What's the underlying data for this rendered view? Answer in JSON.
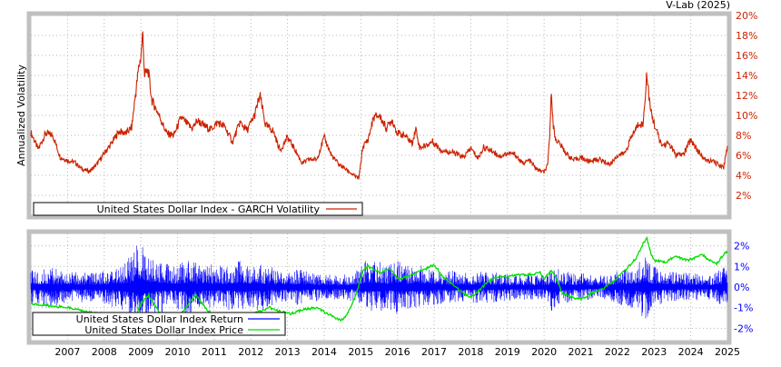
{
  "credit": "V-Lab (2025)",
  "colors": {
    "frame": "#c0c0c0",
    "grid": "#b4b4b4",
    "volatility": "#cc2200",
    "returns": "#0000ff",
    "price": "#00dd00",
    "axis_text": "#cc2200",
    "return_axis_text": "#0000ff",
    "text": "#000000"
  },
  "chart_data": [
    {
      "type": "line",
      "ylabel": "Annualized Volatility",
      "ylim": [
        0,
        20
      ],
      "y_ticks": [
        2,
        4,
        6,
        8,
        10,
        12,
        14,
        16,
        18,
        20
      ],
      "y_tick_labels": [
        "2%",
        "4%",
        "6%",
        "8%",
        "10%",
        "12%",
        "14%",
        "16%",
        "18%",
        "20%"
      ],
      "grid": true,
      "legend_position": "bottom-left",
      "series": [
        {
          "name": "United States Dollar Index - GARCH Volatility",
          "x": [
            2006.0,
            2006.2,
            2006.4,
            2006.6,
            2006.8,
            2007.0,
            2007.2,
            2007.4,
            2007.6,
            2007.8,
            2008.0,
            2008.2,
            2008.4,
            2008.6,
            2008.75,
            2008.85,
            2008.95,
            2009.0,
            2009.05,
            2009.1,
            2009.2,
            2009.3,
            2009.5,
            2009.7,
            2009.9,
            2010.1,
            2010.3,
            2010.4,
            2010.55,
            2010.7,
            2010.9,
            2011.1,
            2011.3,
            2011.5,
            2011.7,
            2011.9,
            2012.1,
            2012.25,
            2012.4,
            2012.6,
            2012.8,
            2013.0,
            2013.2,
            2013.4,
            2013.6,
            2013.8,
            2014.0,
            2014.2,
            2014.4,
            2014.6,
            2014.7,
            2014.8,
            2014.95,
            2015.05,
            2015.2,
            2015.35,
            2015.5,
            2015.7,
            2015.85,
            2016.0,
            2016.2,
            2016.4,
            2016.5,
            2016.6,
            2016.8,
            2016.95,
            2017.2,
            2017.5,
            2017.8,
            2018.0,
            2018.2,
            2018.35,
            2018.6,
            2018.8,
            2019.0,
            2019.2,
            2019.4,
            2019.6,
            2019.8,
            2020.0,
            2020.1,
            2020.15,
            2020.2,
            2020.25,
            2020.3,
            2020.4,
            2020.6,
            2020.8,
            2021.0,
            2021.2,
            2021.5,
            2021.8,
            2022.0,
            2022.2,
            2022.4,
            2022.6,
            2022.7,
            2022.8,
            2022.9,
            2023.0,
            2023.2,
            2023.4,
            2023.6,
            2023.8,
            2024.0,
            2024.2,
            2024.4,
            2024.6,
            2024.8,
            2024.9,
            2025.0
          ],
          "y": [
            8.3,
            6.6,
            8.2,
            8.0,
            5.8,
            5.5,
            5.3,
            4.6,
            4.4,
            5.1,
            6.2,
            7.2,
            8.4,
            8.2,
            8.8,
            12.0,
            15.0,
            15.8,
            18.3,
            14.0,
            14.5,
            11.5,
            10.0,
            8.2,
            8.0,
            9.8,
            9.0,
            8.7,
            9.5,
            9.0,
            8.6,
            9.3,
            8.8,
            7.3,
            9.3,
            8.5,
            10.0,
            12.0,
            9.0,
            8.5,
            6.5,
            7.8,
            6.6,
            5.2,
            5.6,
            5.6,
            7.8,
            6.0,
            5.1,
            4.6,
            4.3,
            4.0,
            3.7,
            6.8,
            7.6,
            9.8,
            10.0,
            8.7,
            9.6,
            8.2,
            8.0,
            7.2,
            8.7,
            6.8,
            7.0,
            7.4,
            6.5,
            6.3,
            5.8,
            6.7,
            5.7,
            6.8,
            6.4,
            5.9,
            6.2,
            6.1,
            5.2,
            5.5,
            4.6,
            4.3,
            5.0,
            8.0,
            12.5,
            9.0,
            7.7,
            7.3,
            6.2,
            5.5,
            5.8,
            5.4,
            5.6,
            5.1,
            6.0,
            6.2,
            8.0,
            9.3,
            9.0,
            14.2,
            10.5,
            9.2,
            7.0,
            7.2,
            6.0,
            6.1,
            7.6,
            6.4,
            5.5,
            5.4,
            5.0,
            4.8,
            7.0
          ]
        }
      ]
    },
    {
      "type": "line",
      "ylim": [
        -2.6,
        2.6
      ],
      "y_ticks": [
        -2,
        -1,
        0,
        1,
        2
      ],
      "y_tick_labels": [
        "-2%",
        "-1%",
        "0%",
        "1%",
        "2%"
      ],
      "grid": true,
      "legend_position": "bottom-left",
      "x_ticks": [
        2007,
        2008,
        2009,
        2010,
        2011,
        2012,
        2013,
        2014,
        2015,
        2016,
        2017,
        2018,
        2019,
        2020,
        2021,
        2022,
        2023,
        2024,
        2025
      ],
      "x_tick_labels": [
        "2007",
        "2008",
        "2009",
        "2010",
        "2011",
        "2012",
        "2013",
        "2014",
        "2015",
        "2016",
        "2017",
        "2018",
        "2019",
        "2020",
        "2021",
        "2022",
        "2023",
        "2024",
        "2025"
      ],
      "series": [
        {
          "name": "United States Dollar Index Return",
          "x": [
            2006.0,
            2006.25,
            2006.5,
            2006.75,
            2007.0,
            2007.25,
            2007.5,
            2007.75,
            2008.0,
            2008.25,
            2008.5,
            2008.75,
            2008.9,
            2009.0,
            2009.1,
            2009.2,
            2009.35,
            2009.5,
            2009.75,
            2010.0,
            2010.25,
            2010.5,
            2010.75,
            2011.0,
            2011.25,
            2011.5,
            2011.75,
            2012.0,
            2012.25,
            2012.5,
            2012.75,
            2013.0,
            2013.25,
            2013.5,
            2013.75,
            2014.0,
            2014.25,
            2014.5,
            2014.75,
            2015.0,
            2015.1,
            2015.25,
            2015.5,
            2015.75,
            2016.0,
            2016.25,
            2016.5,
            2016.75,
            2017.0,
            2017.25,
            2017.5,
            2017.75,
            2018.0,
            2018.25,
            2018.5,
            2018.75,
            2019.0,
            2019.25,
            2019.5,
            2019.75,
            2020.0,
            2020.15,
            2020.2,
            2020.3,
            2020.5,
            2020.75,
            2021.0,
            2021.25,
            2021.5,
            2021.75,
            2022.0,
            2022.25,
            2022.5,
            2022.75,
            2022.8,
            2022.9,
            2023.0,
            2023.25,
            2023.5,
            2023.75,
            2024.0,
            2024.25,
            2024.5,
            2024.75,
            2025.0
          ],
          "hi": [
            0.8,
            0.9,
            1.0,
            0.9,
            0.7,
            0.8,
            0.7,
            0.7,
            0.8,
            1.0,
            1.1,
            1.6,
            2.1,
            2.4,
            2.0,
            1.7,
            1.4,
            1.3,
            1.2,
            1.1,
            1.3,
            1.2,
            1.1,
            1.1,
            1.0,
            1.2,
            1.3,
            1.1,
            1.2,
            1.0,
            0.9,
            0.8,
            0.9,
            0.8,
            0.7,
            0.6,
            0.6,
            0.6,
            0.7,
            1.0,
            1.3,
            1.2,
            1.3,
            1.0,
            1.4,
            1.1,
            1.2,
            1.0,
            0.9,
            0.8,
            0.8,
            0.7,
            0.8,
            0.8,
            0.8,
            0.7,
            0.7,
            0.6,
            0.6,
            0.6,
            0.6,
            0.8,
            1.5,
            1.0,
            0.8,
            0.7,
            0.7,
            0.6,
            0.6,
            0.6,
            0.8,
            1.0,
            1.1,
            1.6,
            1.5,
            1.2,
            1.0,
            0.8,
            0.8,
            0.7,
            0.7,
            0.6,
            0.6,
            0.8,
            1.2
          ],
          "lo": [
            -0.8,
            -0.9,
            -1.0,
            -0.9,
            -0.7,
            -0.8,
            -0.7,
            -0.7,
            -0.8,
            -1.0,
            -1.1,
            -1.6,
            -2.1,
            -2.4,
            -2.0,
            -1.7,
            -1.4,
            -1.3,
            -1.2,
            -1.1,
            -1.3,
            -1.2,
            -1.1,
            -1.1,
            -1.0,
            -1.2,
            -1.3,
            -1.1,
            -1.2,
            -1.0,
            -0.9,
            -0.8,
            -0.9,
            -0.8,
            -0.7,
            -0.6,
            -0.6,
            -0.6,
            -0.7,
            -1.0,
            -1.3,
            -1.2,
            -1.3,
            -1.0,
            -1.4,
            -1.1,
            -1.2,
            -1.0,
            -0.9,
            -0.8,
            -0.8,
            -0.7,
            -0.8,
            -0.8,
            -0.8,
            -0.7,
            -0.7,
            -0.6,
            -0.6,
            -0.6,
            -0.6,
            -0.8,
            -1.5,
            -1.0,
            -0.8,
            -0.7,
            -0.7,
            -0.6,
            -0.6,
            -0.6,
            -0.8,
            -1.0,
            -1.1,
            -1.6,
            -1.5,
            -1.2,
            -1.0,
            -0.8,
            -0.8,
            -0.7,
            -0.7,
            -0.6,
            -0.6,
            -0.8,
            -1.2
          ]
        },
        {
          "name": "United States Dollar Index Price",
          "x": [
            2006.0,
            2006.5,
            2007.0,
            2007.5,
            2008.0,
            2008.3,
            2008.6,
            2008.8,
            2009.0,
            2009.2,
            2009.5,
            2009.8,
            2010.0,
            2010.3,
            2010.5,
            2010.8,
            2011.0,
            2011.3,
            2011.6,
            2011.9,
            2012.2,
            2012.5,
            2012.8,
            2013.1,
            2013.4,
            2013.8,
            2014.0,
            2014.3,
            2014.5,
            2014.7,
            2014.9,
            2015.0,
            2015.1,
            2015.2,
            2015.5,
            2015.8,
            2016.0,
            2016.3,
            2016.5,
            2016.8,
            2017.0,
            2017.2,
            2017.5,
            2017.8,
            2018.0,
            2018.2,
            2018.5,
            2018.8,
            2019.0,
            2019.3,
            2019.6,
            2019.9,
            2020.0,
            2020.2,
            2020.3,
            2020.5,
            2020.8,
            2021.0,
            2021.3,
            2021.6,
            2021.9,
            2022.2,
            2022.5,
            2022.7,
            2022.8,
            2022.9,
            2023.0,
            2023.3,
            2023.6,
            2023.9,
            2024.1,
            2024.3,
            2024.5,
            2024.7,
            2024.9,
            2025.0
          ],
          "y": [
            -0.8,
            -0.9,
            -1.0,
            -1.2,
            -1.3,
            -1.6,
            -1.9,
            -1.7,
            -0.8,
            -0.4,
            -1.2,
            -1.5,
            -1.5,
            -0.8,
            -0.4,
            -1.1,
            -1.4,
            -1.8,
            -2.0,
            -1.5,
            -1.2,
            -1.0,
            -1.2,
            -1.3,
            -1.1,
            -1.0,
            -1.2,
            -1.5,
            -1.6,
            -1.1,
            -0.2,
            0.5,
            0.9,
            1.0,
            0.7,
            0.9,
            0.4,
            0.5,
            0.7,
            0.9,
            1.1,
            0.6,
            0.1,
            -0.3,
            -0.5,
            -0.2,
            0.3,
            0.5,
            0.5,
            0.6,
            0.6,
            0.7,
            0.4,
            0.8,
            0.5,
            -0.3,
            -0.5,
            -0.6,
            -0.3,
            -0.1,
            0.3,
            0.8,
            1.4,
            2.1,
            2.4,
            1.7,
            1.3,
            1.2,
            1.5,
            1.3,
            1.4,
            1.6,
            1.3,
            1.1,
            1.6,
            1.7
          ]
        }
      ]
    }
  ]
}
